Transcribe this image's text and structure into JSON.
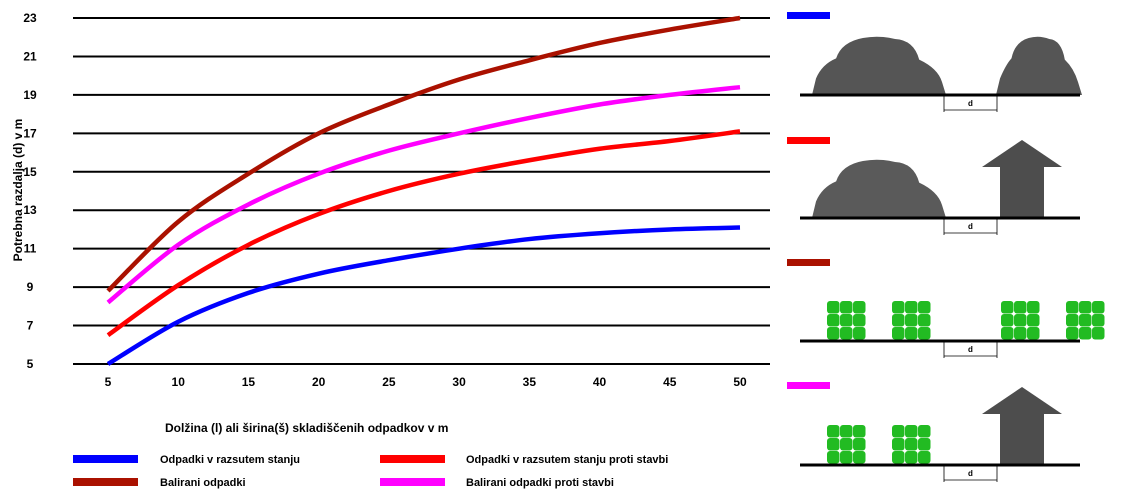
{
  "chart_data": {
    "type": "line",
    "title": "",
    "xlabel": "Dolžina (l) ali širina(š) skladiščenih odpadkov v m",
    "ylabel": "Potrebna razdalja (d) v m",
    "x_ticks": [
      5,
      10,
      15,
      20,
      25,
      30,
      35,
      40,
      45,
      50
    ],
    "y_ticks": [
      5,
      7,
      9,
      11,
      13,
      15,
      17,
      19,
      21,
      23
    ],
    "xlim": [
      5,
      50
    ],
    "ylim": [
      5,
      23
    ],
    "grid": "horizontal",
    "legend_position": "bottom",
    "x": [
      5,
      10,
      15,
      20,
      25,
      30,
      35,
      40,
      45,
      50
    ],
    "series": [
      {
        "name": "Odpadki v razsutem stanju",
        "color": "#0000ff",
        "values": [
          5.0,
          7.2,
          8.7,
          9.7,
          10.4,
          11.0,
          11.5,
          11.8,
          12.0,
          12.1
        ]
      },
      {
        "name": "Odpadki v razsutem stanju proti stavbi",
        "color": "#ff0000",
        "values": [
          6.5,
          9.1,
          11.2,
          12.8,
          14.0,
          14.9,
          15.6,
          16.2,
          16.6,
          17.1
        ]
      },
      {
        "name": "Balirani odpadki",
        "color": "#aa1100",
        "values": [
          8.8,
          12.4,
          14.9,
          17.0,
          18.5,
          19.8,
          20.8,
          21.7,
          22.4,
          23.0
        ]
      },
      {
        "name": "Balirani odpadki proti stavbi",
        "color": "#ff00ff",
        "values": [
          8.2,
          11.2,
          13.3,
          14.9,
          16.1,
          17.0,
          17.8,
          18.5,
          19.0,
          19.4
        ]
      }
    ]
  },
  "illustrations": {
    "distance_label": "d",
    "panels": [
      {
        "legend_color": "#0000ff",
        "scene": "heap-heap"
      },
      {
        "legend_color": "#ff0000",
        "scene": "heap-building"
      },
      {
        "legend_color": "#aa1100",
        "scene": "bales-bales"
      },
      {
        "legend_color": "#ff00ff",
        "scene": "bales-building"
      }
    ],
    "colors": {
      "heap": "#555555",
      "building": "#4d4d4d",
      "bale": "#22bb22"
    }
  }
}
